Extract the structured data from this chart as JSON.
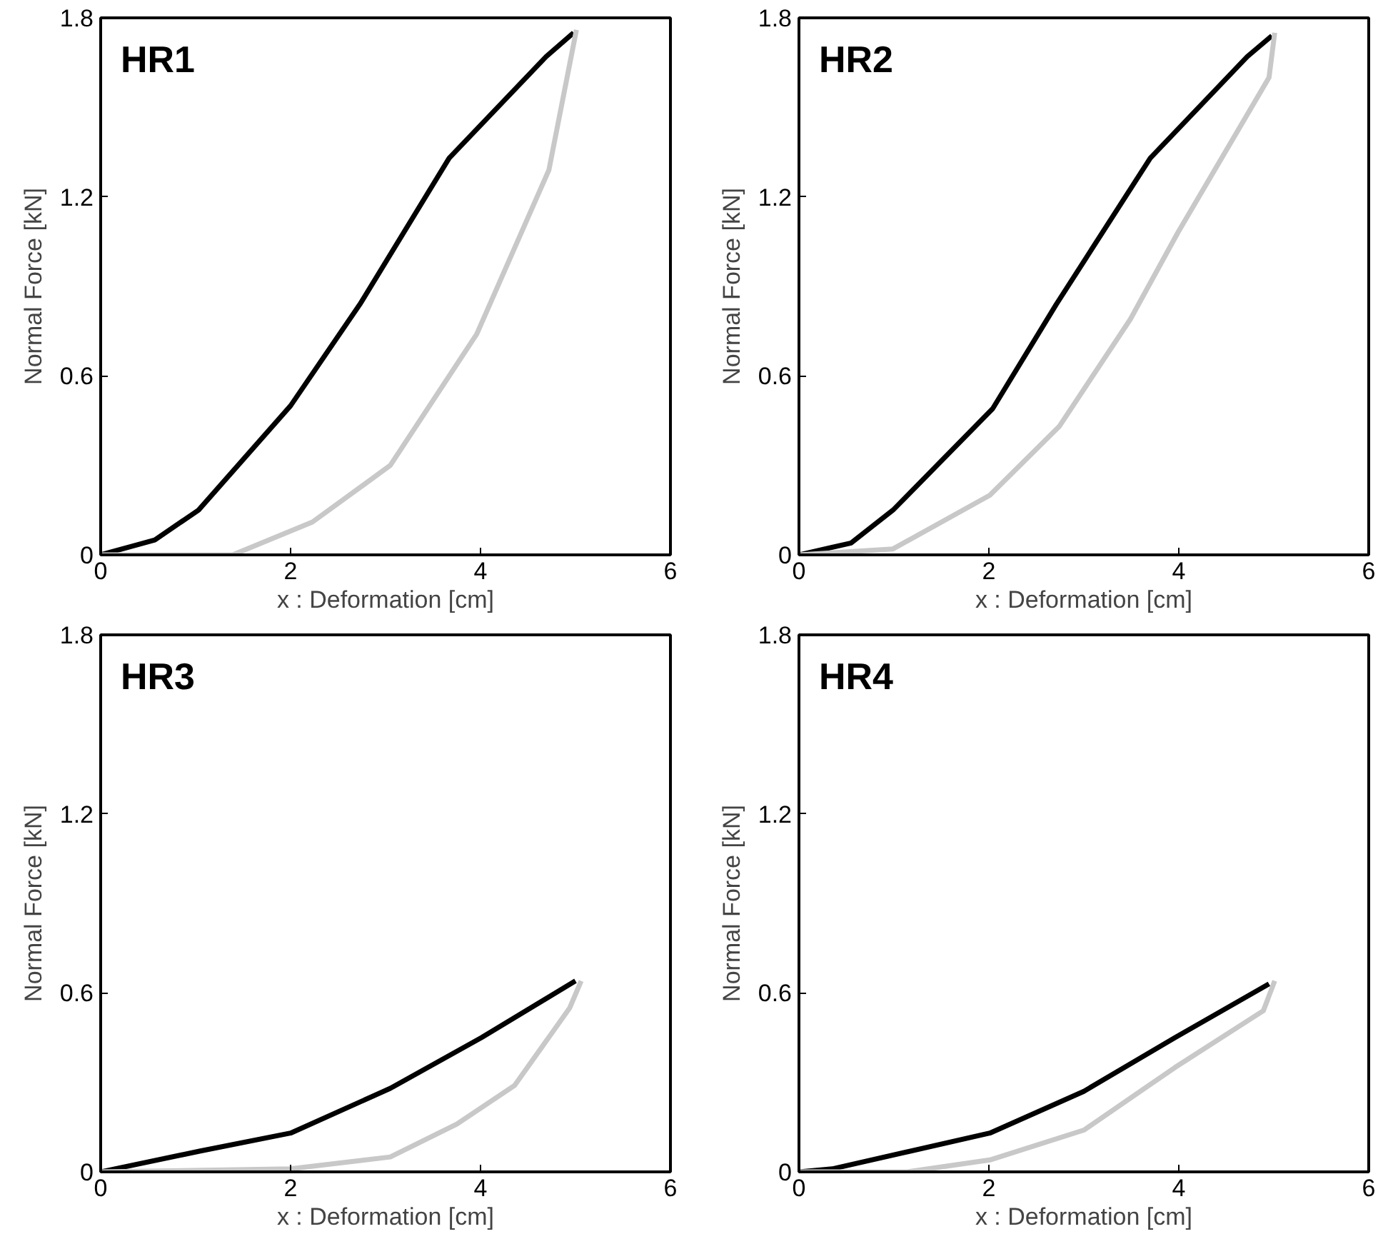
{
  "chart_data": [
    {
      "type": "line",
      "title": "HR1",
      "xlabel": "x : Deformation [cm]",
      "ylabel": "Normal Force [kN]",
      "xlim": [
        0,
        6
      ],
      "ylim": [
        0,
        1.8
      ],
      "xticks": [
        0,
        2,
        4,
        6
      ],
      "yticks": [
        0,
        0.6,
        1.2,
        1.8
      ],
      "line_style": "solid",
      "series": [
        {
          "color": "#000000",
          "x": [
            0,
            0.57,
            1.03,
            2.0,
            2.73,
            3.67,
            4.69,
            4.98
          ],
          "values": [
            0,
            0.05,
            0.15,
            0.5,
            0.84,
            1.33,
            1.67,
            1.75
          ]
        },
        {
          "color": "#c8c8c8",
          "x": [
            0,
            1.39,
            2.23,
            3.05,
            3.96,
            4.72,
            5.01
          ],
          "values": [
            0,
            0,
            0.11,
            0.3,
            0.74,
            1.29,
            1.76
          ]
        }
      ]
    },
    {
      "type": "line",
      "title": "HR2",
      "xlabel": "x : Deformation [cm]",
      "ylabel": "Normal Force [kN]",
      "xlim": [
        0,
        6
      ],
      "ylim": [
        0,
        1.8
      ],
      "xticks": [
        0,
        2,
        4,
        6
      ],
      "yticks": [
        0,
        0.6,
        1.2,
        1.8
      ],
      "line_style": "solid",
      "series": [
        {
          "color": "#000000",
          "x": [
            0,
            0.55,
            0.99,
            2.04,
            2.71,
            3.7,
            4.72,
            4.98
          ],
          "values": [
            0,
            0.04,
            0.15,
            0.49,
            0.84,
            1.33,
            1.67,
            1.74
          ]
        },
        {
          "color": "#c8c8c8",
          "x": [
            0,
            0.99,
            2.01,
            2.74,
            3.49,
            3.99,
            4.95,
            5.01
          ],
          "values": [
            0,
            0.02,
            0.2,
            0.43,
            0.79,
            1.08,
            1.6,
            1.75
          ]
        }
      ]
    },
    {
      "type": "line",
      "title": "HR3",
      "xlabel": "x : Deformation [cm]",
      "ylabel": "Normal Force [kN]",
      "xlim": [
        0,
        6
      ],
      "ylim": [
        0,
        1.8
      ],
      "xticks": [
        0,
        2,
        4,
        6
      ],
      "yticks": [
        0,
        0.6,
        1.2,
        1.8
      ],
      "line_style": "solid",
      "series": [
        {
          "color": "#000000",
          "x": [
            0,
            1.05,
            2.0,
            3.05,
            4.01,
            5.0
          ],
          "values": [
            0,
            0.07,
            0.13,
            0.28,
            0.45,
            0.64
          ]
        },
        {
          "color": "#c8c8c8",
          "x": [
            0,
            2.0,
            3.05,
            3.75,
            4.36,
            4.94,
            5.06
          ],
          "values": [
            0,
            0.01,
            0.05,
            0.16,
            0.29,
            0.55,
            0.64
          ]
        }
      ]
    },
    {
      "type": "line",
      "title": "HR4",
      "xlabel": "x : Deformation [cm]",
      "ylabel": "Normal Force [kN]",
      "xlim": [
        0,
        6
      ],
      "ylim": [
        0,
        1.8
      ],
      "xticks": [
        0,
        2,
        4,
        6
      ],
      "yticks": [
        0,
        0.6,
        1.2,
        1.8
      ],
      "line_style": "solid",
      "series": [
        {
          "color": "#000000",
          "x": [
            0,
            0.35,
            2.01,
            3.0,
            3.96,
            4.95
          ],
          "values": [
            0,
            0.01,
            0.13,
            0.27,
            0.45,
            0.63
          ]
        },
        {
          "color": "#c8c8c8",
          "x": [
            0,
            1.14,
            2.01,
            3.0,
            3.96,
            4.89,
            5.01
          ],
          "values": [
            0,
            0,
            0.04,
            0.14,
            0.35,
            0.54,
            0.64
          ]
        }
      ]
    }
  ]
}
